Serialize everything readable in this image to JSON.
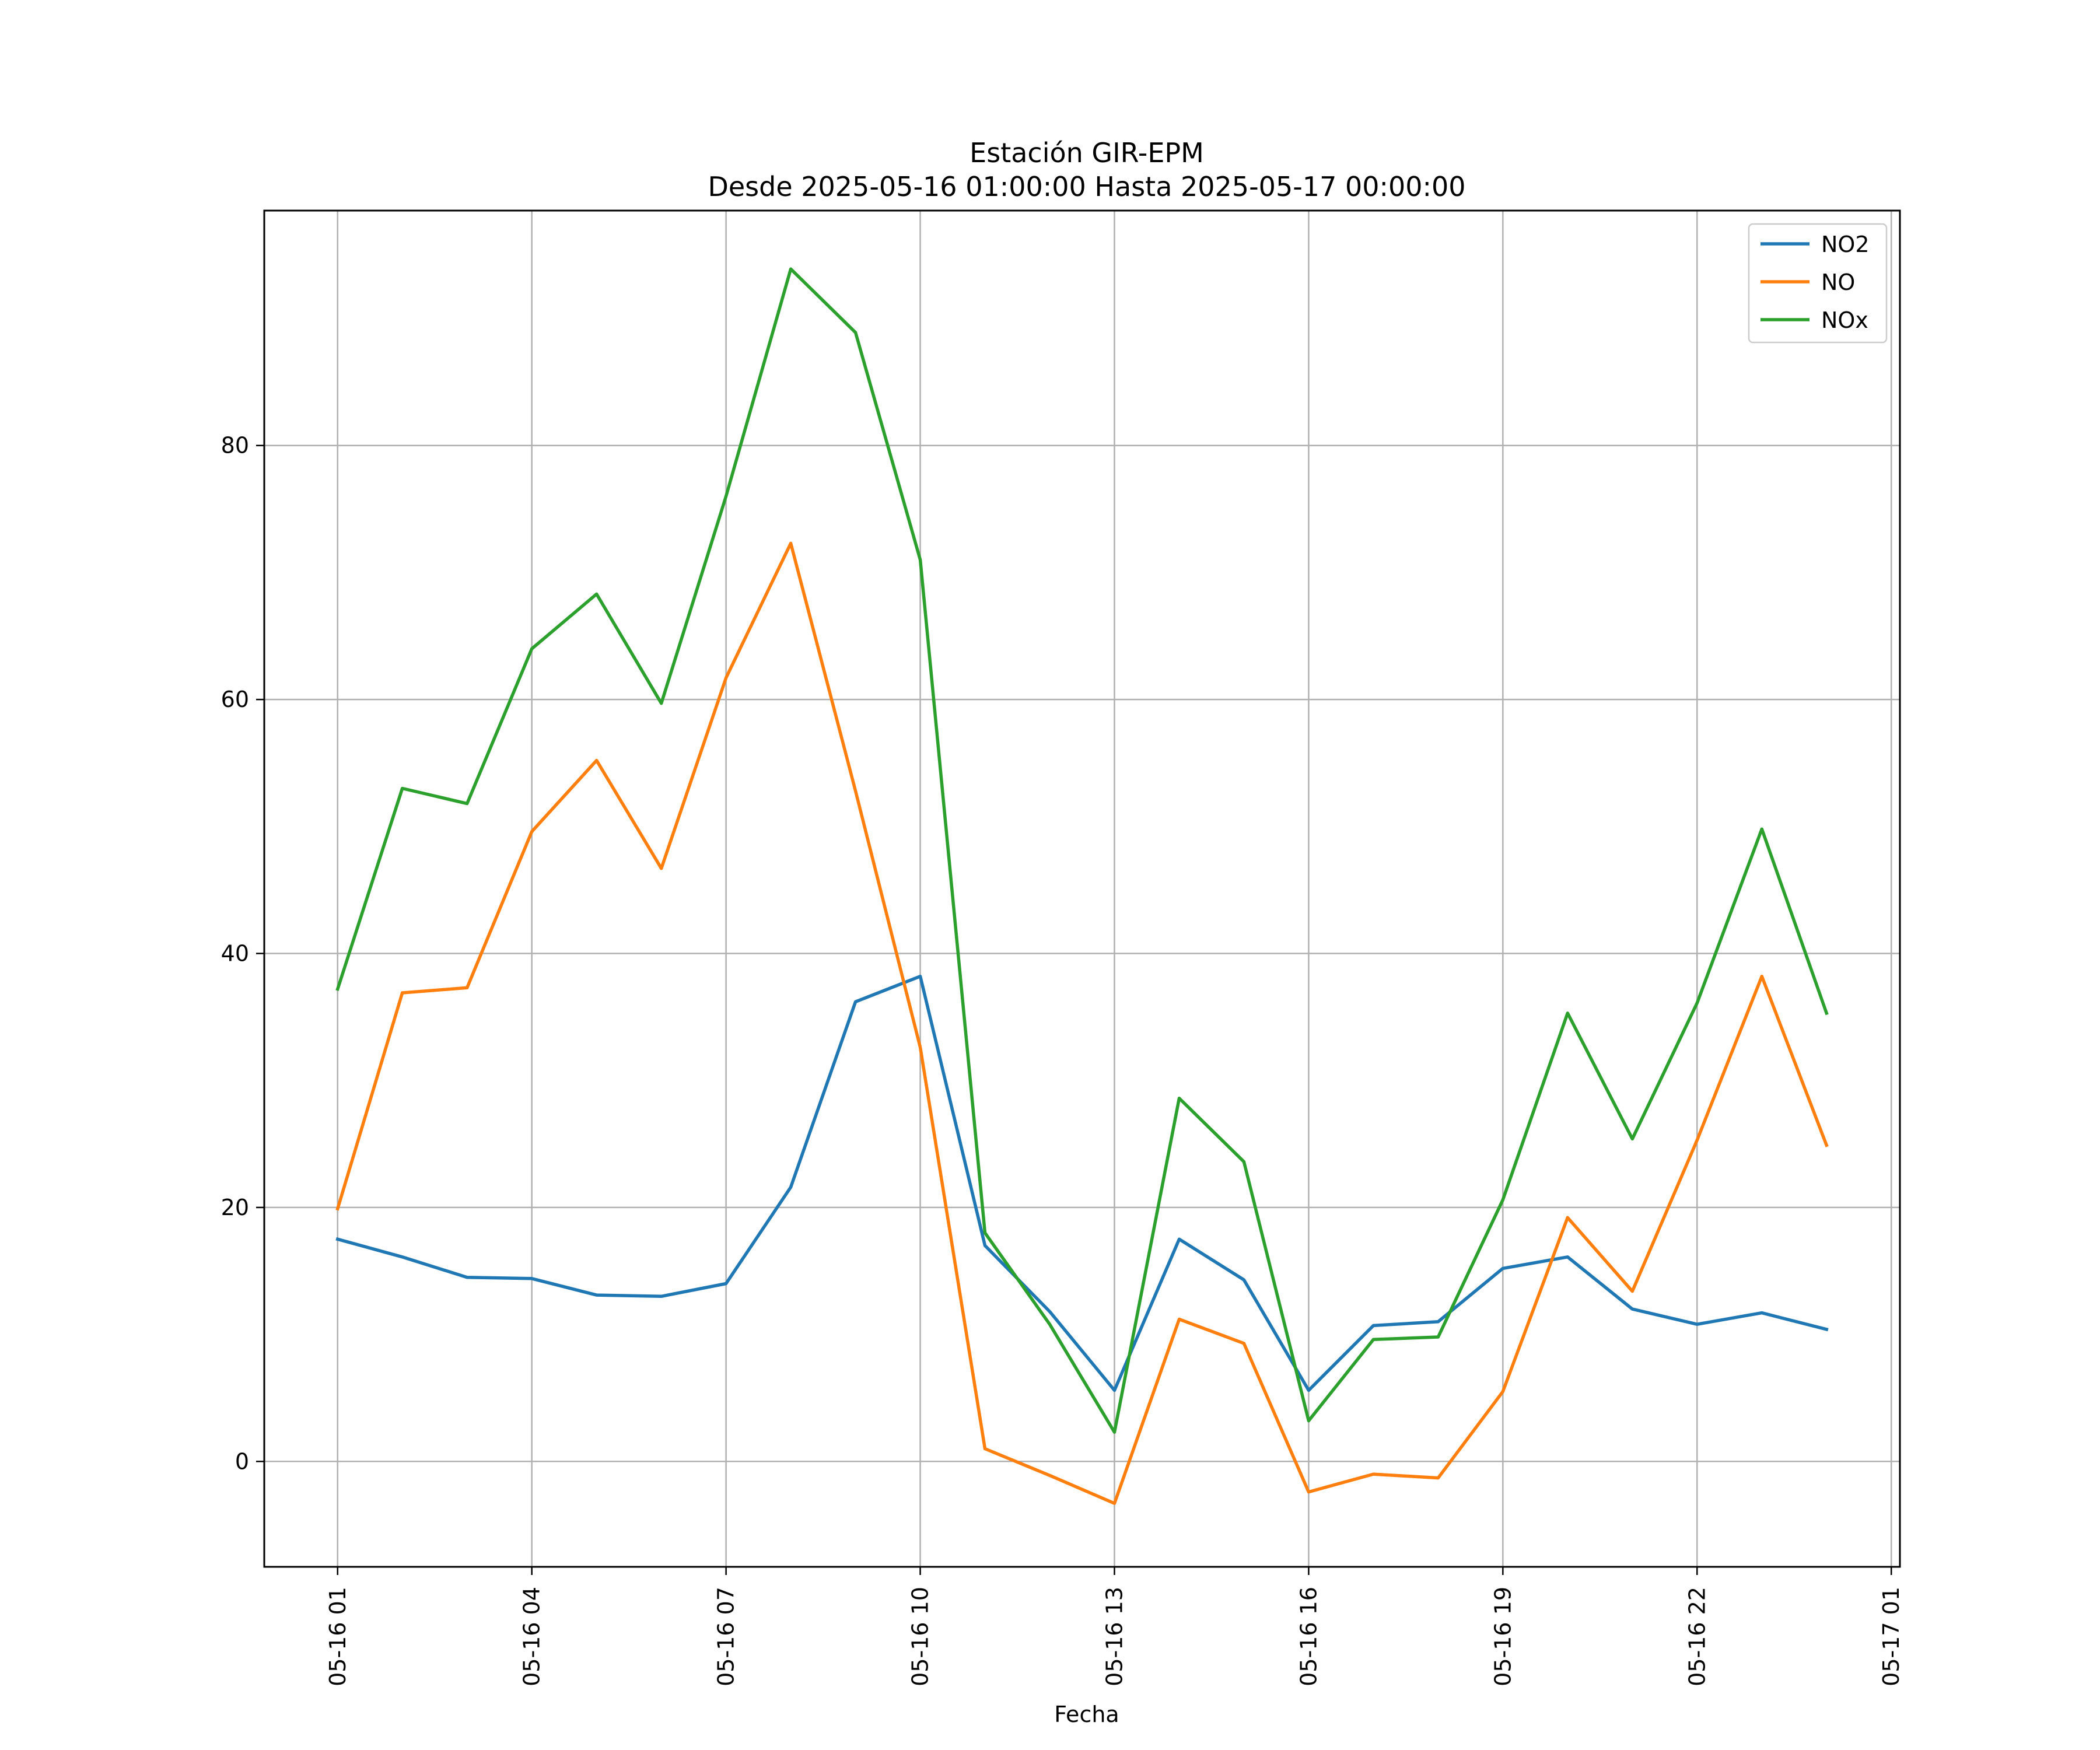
{
  "chart_data": {
    "type": "line",
    "title": "Estación GIR-EPM",
    "subtitle": "Desde 2025-05-16 01:00:00 Hasta 2025-05-17 00:00:00",
    "xlabel": "Fecha",
    "ylabel": "",
    "x": [
      "2025-05-16 01:00",
      "2025-05-16 02:00",
      "2025-05-16 03:00",
      "2025-05-16 04:00",
      "2025-05-16 05:00",
      "2025-05-16 06:00",
      "2025-05-16 07:00",
      "2025-05-16 08:00",
      "2025-05-16 09:00",
      "2025-05-16 10:00",
      "2025-05-16 11:00",
      "2025-05-16 12:00",
      "2025-05-16 13:00",
      "2025-05-16 14:00",
      "2025-05-16 15:00",
      "2025-05-16 16:00",
      "2025-05-16 17:00",
      "2025-05-16 18:00",
      "2025-05-16 19:00",
      "2025-05-16 20:00",
      "2025-05-16 21:00",
      "2025-05-16 22:00",
      "2025-05-16 23:00",
      "2025-05-17 00:00"
    ],
    "x_ticks": [
      "2025-05-16 01:00",
      "2025-05-16 04:00",
      "2025-05-16 07:00",
      "2025-05-16 10:00",
      "2025-05-16 13:00",
      "2025-05-16 16:00",
      "2025-05-16 19:00",
      "2025-05-16 22:00",
      "2025-05-17 01:00"
    ],
    "x_tick_labels": [
      "05-16 01",
      "05-16 04",
      "05-16 07",
      "05-16 10",
      "05-16 13",
      "05-16 16",
      "05-16 19",
      "05-16 22",
      "05-17 01"
    ],
    "xlim": [
      "2025-05-15 23:52",
      "2025-05-17 01:08"
    ],
    "ylim": [
      -8.3,
      98.5
    ],
    "y_ticks": [
      0,
      20,
      40,
      60,
      80
    ],
    "y_tick_labels": [
      "0",
      "20",
      "40",
      "60",
      "80"
    ],
    "grid": true,
    "legend_position": "top-right",
    "series": [
      {
        "name": "NO2",
        "color": "#1f77b4",
        "values": [
          17.5,
          16.1,
          14.5,
          14.4,
          13.1,
          13.0,
          14.0,
          21.6,
          36.2,
          38.2,
          17.0,
          11.8,
          5.6,
          17.5,
          14.3,
          5.6,
          10.7,
          11.0,
          15.2,
          16.1,
          12.0,
          10.8,
          11.7,
          10.4
        ]
      },
      {
        "name": "NO",
        "color": "#ff7f0e",
        "values": [
          19.9,
          36.9,
          37.3,
          49.6,
          55.2,
          46.7,
          61.7,
          72.3,
          52.8,
          32.6,
          1.0,
          -1.1,
          -3.3,
          11.2,
          9.3,
          -2.4,
          -1.0,
          -1.3,
          5.5,
          19.2,
          13.4,
          25.3,
          38.2,
          24.9
        ]
      },
      {
        "name": "NOx",
        "color": "#2ca02c",
        "values": [
          37.2,
          53.0,
          51.8,
          64.0,
          68.3,
          59.7,
          76.0,
          93.9,
          88.9,
          71.0,
          18.0,
          10.8,
          2.3,
          28.6,
          23.6,
          3.2,
          9.6,
          9.8,
          20.6,
          35.3,
          25.4,
          36.1,
          49.8,
          35.3
        ]
      }
    ]
  }
}
